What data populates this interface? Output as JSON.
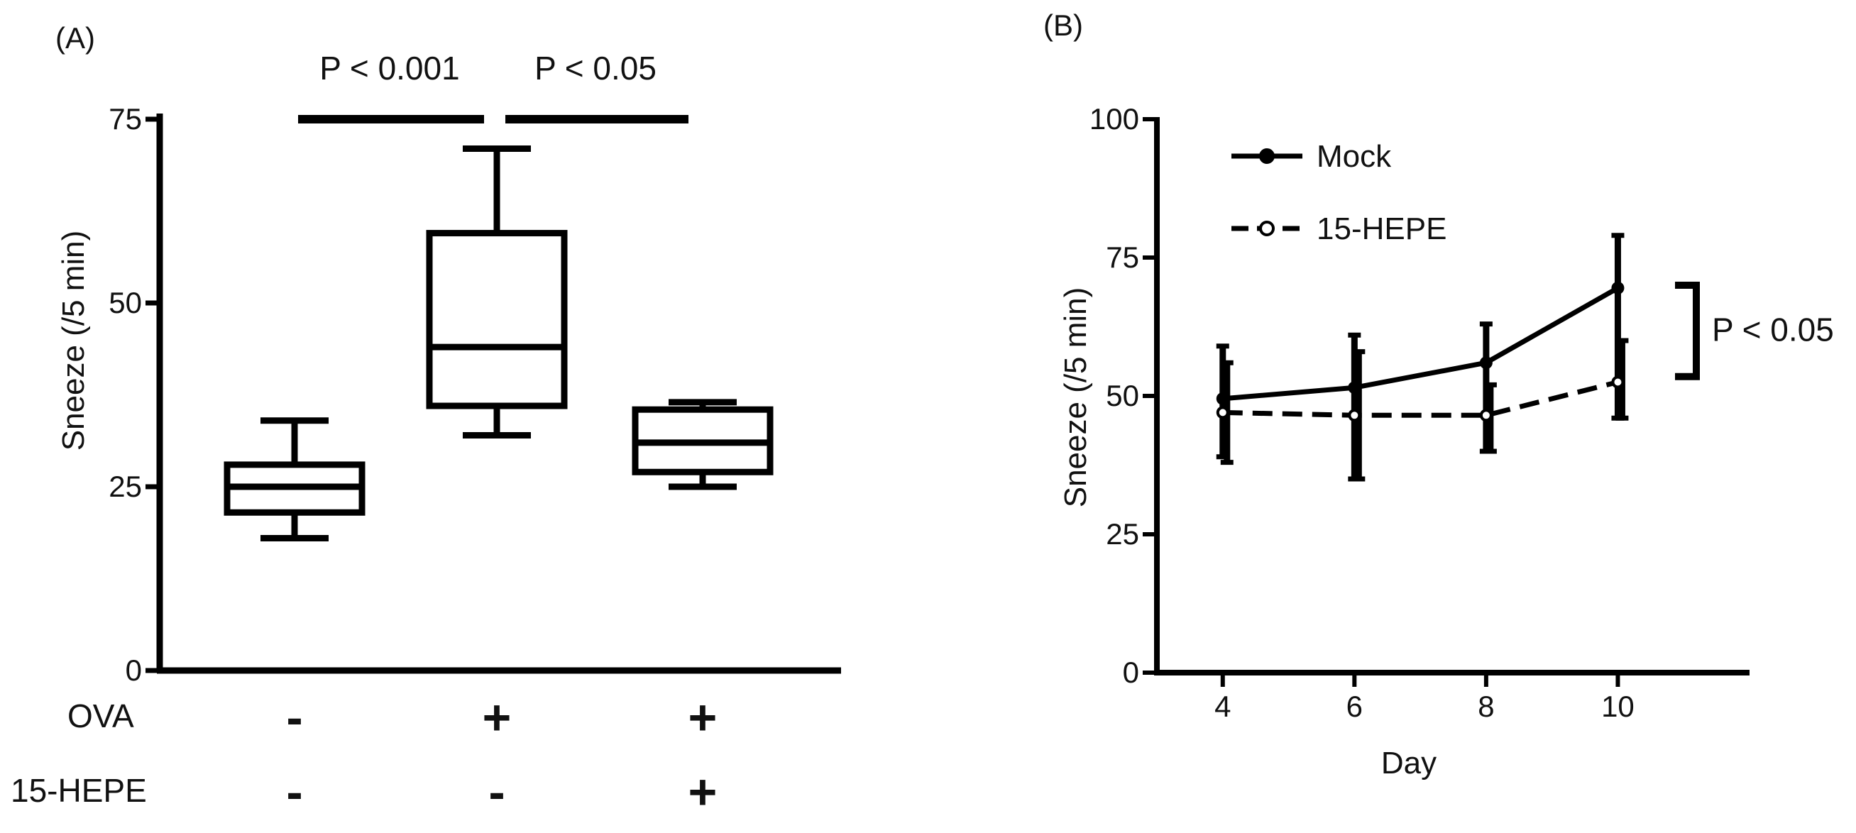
{
  "chart_data": [
    {
      "panel_label": "(A)",
      "type": "box",
      "ylabel": "Sneeze (/5 min)",
      "xlabel": "",
      "ylim": [
        0,
        75
      ],
      "yticks": [
        0,
        25,
        50,
        75
      ],
      "ytick_labels": [
        "0",
        "25",
        "50",
        "75"
      ],
      "factor_rows": [
        {
          "label": "OVA",
          "values": [
            "-",
            "+",
            "+"
          ]
        },
        {
          "label": "15-HEPE",
          "values": [
            "-",
            "-",
            "+"
          ]
        }
      ],
      "boxes": [
        {
          "min": 18,
          "q1": 21.5,
          "median": 25,
          "q3": 28,
          "max": 34
        },
        {
          "min": 32,
          "q1": 36,
          "median": 44,
          "q3": 59.5,
          "max": 71
        },
        {
          "min": 25,
          "q1": 27,
          "median": 31,
          "q3": 35.5,
          "max": 36.5
        }
      ],
      "comparisons": [
        {
          "from": 0,
          "to": 1,
          "label": "P < 0.001"
        },
        {
          "from": 1,
          "to": 2,
          "label": "P < 0.05"
        }
      ]
    },
    {
      "panel_label": "(B)",
      "type": "line",
      "xlabel": "Day",
      "ylabel": "Sneeze (/5 min)",
      "x": [
        4,
        6,
        8,
        10
      ],
      "xlim": [
        3,
        12
      ],
      "ylim": [
        0,
        100
      ],
      "xticks": [
        4,
        6,
        8,
        10
      ],
      "xtick_labels": [
        "4",
        "6",
        "8",
        "10"
      ],
      "yticks": [
        0,
        25,
        50,
        75,
        100
      ],
      "ytick_labels": [
        "0",
        "25",
        "50",
        "75",
        "100"
      ],
      "legend_position": "top-left",
      "series": [
        {
          "name": "Mock",
          "style": "solid",
          "marker": "filled-circle",
          "values": [
            49.5,
            51.5,
            56,
            69.5
          ],
          "err_low": [
            39,
            35,
            40,
            46
          ],
          "err_high": [
            59,
            61,
            63,
            79
          ]
        },
        {
          "name": "15-HEPE",
          "style": "dashed",
          "marker": "open-circle",
          "values": [
            47,
            46.5,
            46.5,
            52.5
          ],
          "err_low": [
            38,
            35,
            40,
            46
          ],
          "err_high": [
            56,
            58,
            52,
            60
          ]
        }
      ],
      "annotation": {
        "label": "P < 0.05"
      }
    }
  ]
}
